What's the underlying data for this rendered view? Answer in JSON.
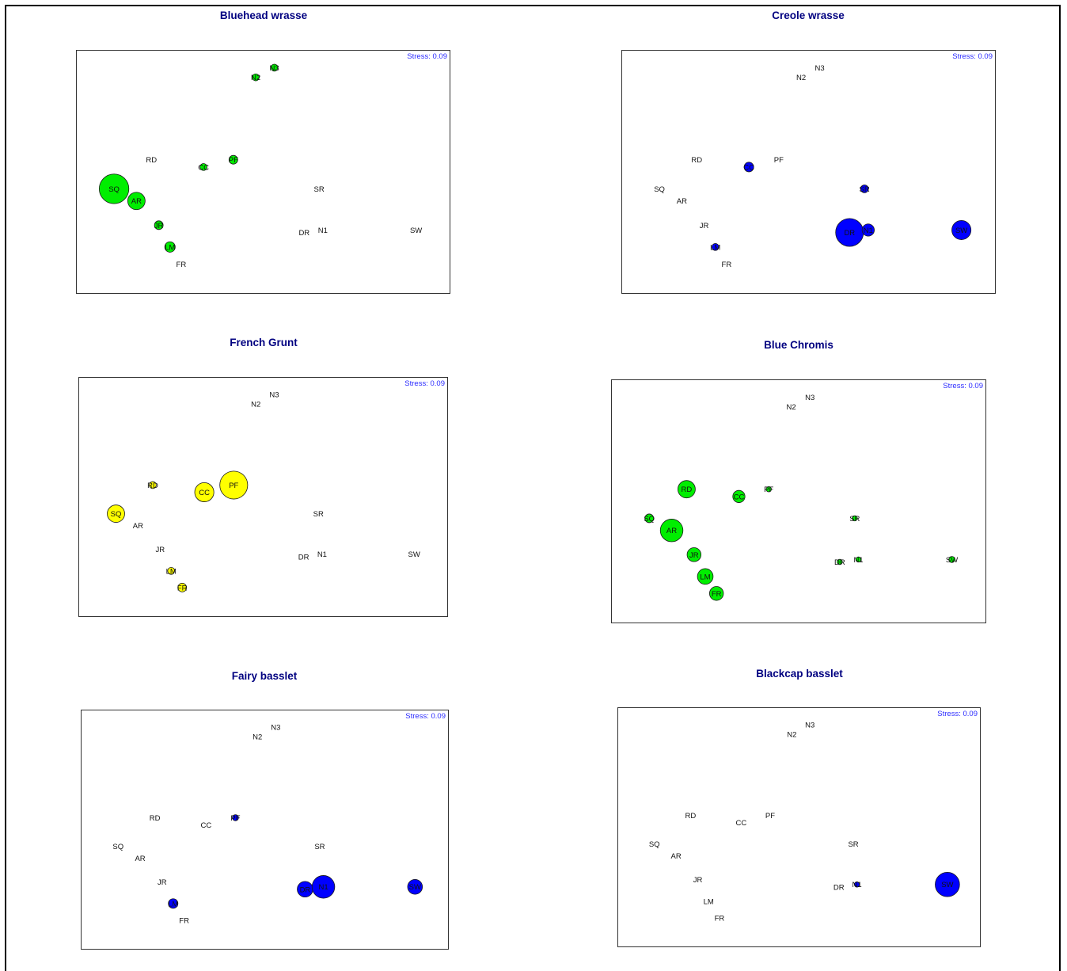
{
  "page": {
    "bubble_colors": {
      "green": "#00ee00",
      "yellow": "#ffff00",
      "blue": "#0000ff"
    },
    "panel_border_color": "#333333",
    "title_color": "#000080",
    "stress_color": "#2b2bff"
  },
  "chart_data": [
    {
      "type": "scatter",
      "title": "Bluehead wrasse",
      "stress_label": "Stress: 0.09",
      "bubble_color": "green",
      "points": [
        {
          "label": "N3",
          "x": 5.3,
          "y": 9.3,
          "size": 0.4
        },
        {
          "label": "N2",
          "x": 4.8,
          "y": 8.9,
          "size": 0.4
        },
        {
          "label": "RD",
          "x": 2.0,
          "y": 5.5,
          "size": 0
        },
        {
          "label": "CC",
          "x": 3.4,
          "y": 5.2,
          "size": 0.4
        },
        {
          "label": "PF",
          "x": 4.2,
          "y": 5.5,
          "size": 0.5
        },
        {
          "label": "SQ",
          "x": 1.0,
          "y": 4.3,
          "size": 1.7
        },
        {
          "label": "AR",
          "x": 1.6,
          "y": 3.8,
          "size": 1.0
        },
        {
          "label": "SR",
          "x": 6.5,
          "y": 4.3,
          "size": 0
        },
        {
          "label": "JR",
          "x": 2.2,
          "y": 2.8,
          "size": 0.5
        },
        {
          "label": "DR",
          "x": 6.1,
          "y": 2.5,
          "size": 0
        },
        {
          "label": "N1",
          "x": 6.6,
          "y": 2.6,
          "size": 0
        },
        {
          "label": "SW",
          "x": 9.1,
          "y": 2.6,
          "size": 0
        },
        {
          "label": "LM",
          "x": 2.5,
          "y": 1.9,
          "size": 0.6
        },
        {
          "label": "FR",
          "x": 2.8,
          "y": 1.2,
          "size": 0
        }
      ]
    },
    {
      "type": "scatter",
      "title": "Creole wrasse",
      "stress_label": "Stress: 0.09",
      "bubble_color": "blue",
      "points": [
        {
          "label": "N3",
          "x": 5.3,
          "y": 9.3,
          "size": 0
        },
        {
          "label": "N2",
          "x": 4.8,
          "y": 8.9,
          "size": 0
        },
        {
          "label": "RD",
          "x": 2.0,
          "y": 5.5,
          "size": 0
        },
        {
          "label": "CC",
          "x": 3.4,
          "y": 5.2,
          "size": 0.55
        },
        {
          "label": "PF",
          "x": 4.2,
          "y": 5.5,
          "size": 0
        },
        {
          "label": "SQ",
          "x": 1.0,
          "y": 4.3,
          "size": 0
        },
        {
          "label": "AR",
          "x": 1.6,
          "y": 3.8,
          "size": 0
        },
        {
          "label": "SR",
          "x": 6.5,
          "y": 4.3,
          "size": 0.45
        },
        {
          "label": "JR",
          "x": 2.2,
          "y": 2.8,
          "size": 0
        },
        {
          "label": "DR",
          "x": 6.1,
          "y": 2.5,
          "size": 1.6
        },
        {
          "label": "N1",
          "x": 6.6,
          "y": 2.6,
          "size": 0.7
        },
        {
          "label": "SW",
          "x": 9.1,
          "y": 2.6,
          "size": 1.1
        },
        {
          "label": "LM",
          "x": 2.5,
          "y": 1.9,
          "size": 0.4
        },
        {
          "label": "FR",
          "x": 2.8,
          "y": 1.2,
          "size": 0
        }
      ]
    },
    {
      "type": "scatter",
      "title": "French Grunt",
      "stress_label": "Stress: 0.09",
      "bubble_color": "yellow",
      "points": [
        {
          "label": "N3",
          "x": 5.3,
          "y": 9.3,
          "size": 0
        },
        {
          "label": "N2",
          "x": 4.8,
          "y": 8.9,
          "size": 0
        },
        {
          "label": "RD",
          "x": 2.0,
          "y": 5.5,
          "size": 0.4
        },
        {
          "label": "CC",
          "x": 3.4,
          "y": 5.2,
          "size": 1.1
        },
        {
          "label": "PF",
          "x": 4.2,
          "y": 5.5,
          "size": 1.6
        },
        {
          "label": "SQ",
          "x": 1.0,
          "y": 4.3,
          "size": 1.0
        },
        {
          "label": "AR",
          "x": 1.6,
          "y": 3.8,
          "size": 0
        },
        {
          "label": "SR",
          "x": 6.5,
          "y": 4.3,
          "size": 0
        },
        {
          "label": "JR",
          "x": 2.2,
          "y": 2.8,
          "size": 0
        },
        {
          "label": "DR",
          "x": 6.1,
          "y": 2.5,
          "size": 0
        },
        {
          "label": "N1",
          "x": 6.6,
          "y": 2.6,
          "size": 0
        },
        {
          "label": "SW",
          "x": 9.1,
          "y": 2.6,
          "size": 0
        },
        {
          "label": "LM",
          "x": 2.5,
          "y": 1.9,
          "size": 0.4
        },
        {
          "label": "FR",
          "x": 2.8,
          "y": 1.2,
          "size": 0.5
        }
      ]
    },
    {
      "type": "scatter",
      "title": "Blue Chromis",
      "stress_label": "Stress: 0.09",
      "bubble_color": "green",
      "points": [
        {
          "label": "N3",
          "x": 5.3,
          "y": 9.3,
          "size": 0
        },
        {
          "label": "N2",
          "x": 4.8,
          "y": 8.9,
          "size": 0
        },
        {
          "label": "RD",
          "x": 2.0,
          "y": 5.5,
          "size": 1.0
        },
        {
          "label": "CC",
          "x": 3.4,
          "y": 5.2,
          "size": 0.7
        },
        {
          "label": "PF",
          "x": 4.2,
          "y": 5.5,
          "size": 0.3
        },
        {
          "label": "SQ",
          "x": 1.0,
          "y": 4.3,
          "size": 0.5
        },
        {
          "label": "AR",
          "x": 1.6,
          "y": 3.8,
          "size": 1.3
        },
        {
          "label": "SR",
          "x": 6.5,
          "y": 4.3,
          "size": 0.3
        },
        {
          "label": "JR",
          "x": 2.2,
          "y": 2.8,
          "size": 0.8
        },
        {
          "label": "DR",
          "x": 6.1,
          "y": 2.5,
          "size": 0.3
        },
        {
          "label": "N1",
          "x": 6.6,
          "y": 2.6,
          "size": 0.3
        },
        {
          "label": "SW",
          "x": 9.1,
          "y": 2.6,
          "size": 0.35
        },
        {
          "label": "LM",
          "x": 2.5,
          "y": 1.9,
          "size": 0.9
        },
        {
          "label": "FR",
          "x": 2.8,
          "y": 1.2,
          "size": 0.8
        }
      ]
    },
    {
      "type": "scatter",
      "title": "Fairy basslet",
      "stress_label": "Stress: 0.09",
      "bubble_color": "blue",
      "points": [
        {
          "label": "N3",
          "x": 5.3,
          "y": 9.3,
          "size": 0
        },
        {
          "label": "N2",
          "x": 4.8,
          "y": 8.9,
          "size": 0
        },
        {
          "label": "RD",
          "x": 2.0,
          "y": 5.5,
          "size": 0
        },
        {
          "label": "CC",
          "x": 3.4,
          "y": 5.2,
          "size": 0
        },
        {
          "label": "PF",
          "x": 4.2,
          "y": 5.5,
          "size": 0.35
        },
        {
          "label": "SQ",
          "x": 1.0,
          "y": 4.3,
          "size": 0
        },
        {
          "label": "AR",
          "x": 1.6,
          "y": 3.8,
          "size": 0
        },
        {
          "label": "SR",
          "x": 6.5,
          "y": 4.3,
          "size": 0
        },
        {
          "label": "JR",
          "x": 2.2,
          "y": 2.8,
          "size": 0
        },
        {
          "label": "DR",
          "x": 6.1,
          "y": 2.5,
          "size": 0.9
        },
        {
          "label": "N1",
          "x": 6.6,
          "y": 2.6,
          "size": 1.3
        },
        {
          "label": "SW",
          "x": 9.1,
          "y": 2.6,
          "size": 0.85
        },
        {
          "label": "LM",
          "x": 2.5,
          "y": 1.9,
          "size": 0.55
        },
        {
          "label": "FR",
          "x": 2.8,
          "y": 1.2,
          "size": 0
        }
      ]
    },
    {
      "type": "scatter",
      "title": "Blackcap basslet",
      "stress_label": "Stress: 0.09",
      "bubble_color": "blue",
      "points": [
        {
          "label": "N3",
          "x": 5.3,
          "y": 9.3,
          "size": 0
        },
        {
          "label": "N2",
          "x": 4.8,
          "y": 8.9,
          "size": 0
        },
        {
          "label": "RD",
          "x": 2.0,
          "y": 5.5,
          "size": 0
        },
        {
          "label": "CC",
          "x": 3.4,
          "y": 5.2,
          "size": 0
        },
        {
          "label": "PF",
          "x": 4.2,
          "y": 5.5,
          "size": 0
        },
        {
          "label": "SQ",
          "x": 1.0,
          "y": 4.3,
          "size": 0
        },
        {
          "label": "AR",
          "x": 1.6,
          "y": 3.8,
          "size": 0
        },
        {
          "label": "SR",
          "x": 6.5,
          "y": 4.3,
          "size": 0
        },
        {
          "label": "JR",
          "x": 2.2,
          "y": 2.8,
          "size": 0
        },
        {
          "label": "DR",
          "x": 6.1,
          "y": 2.5,
          "size": 0
        },
        {
          "label": "N1",
          "x": 6.6,
          "y": 2.6,
          "size": 0.3
        },
        {
          "label": "SW",
          "x": 9.1,
          "y": 2.6,
          "size": 1.4
        },
        {
          "label": "LM",
          "x": 2.5,
          "y": 1.9,
          "size": 0
        },
        {
          "label": "FR",
          "x": 2.8,
          "y": 1.2,
          "size": 0
        }
      ]
    }
  ]
}
